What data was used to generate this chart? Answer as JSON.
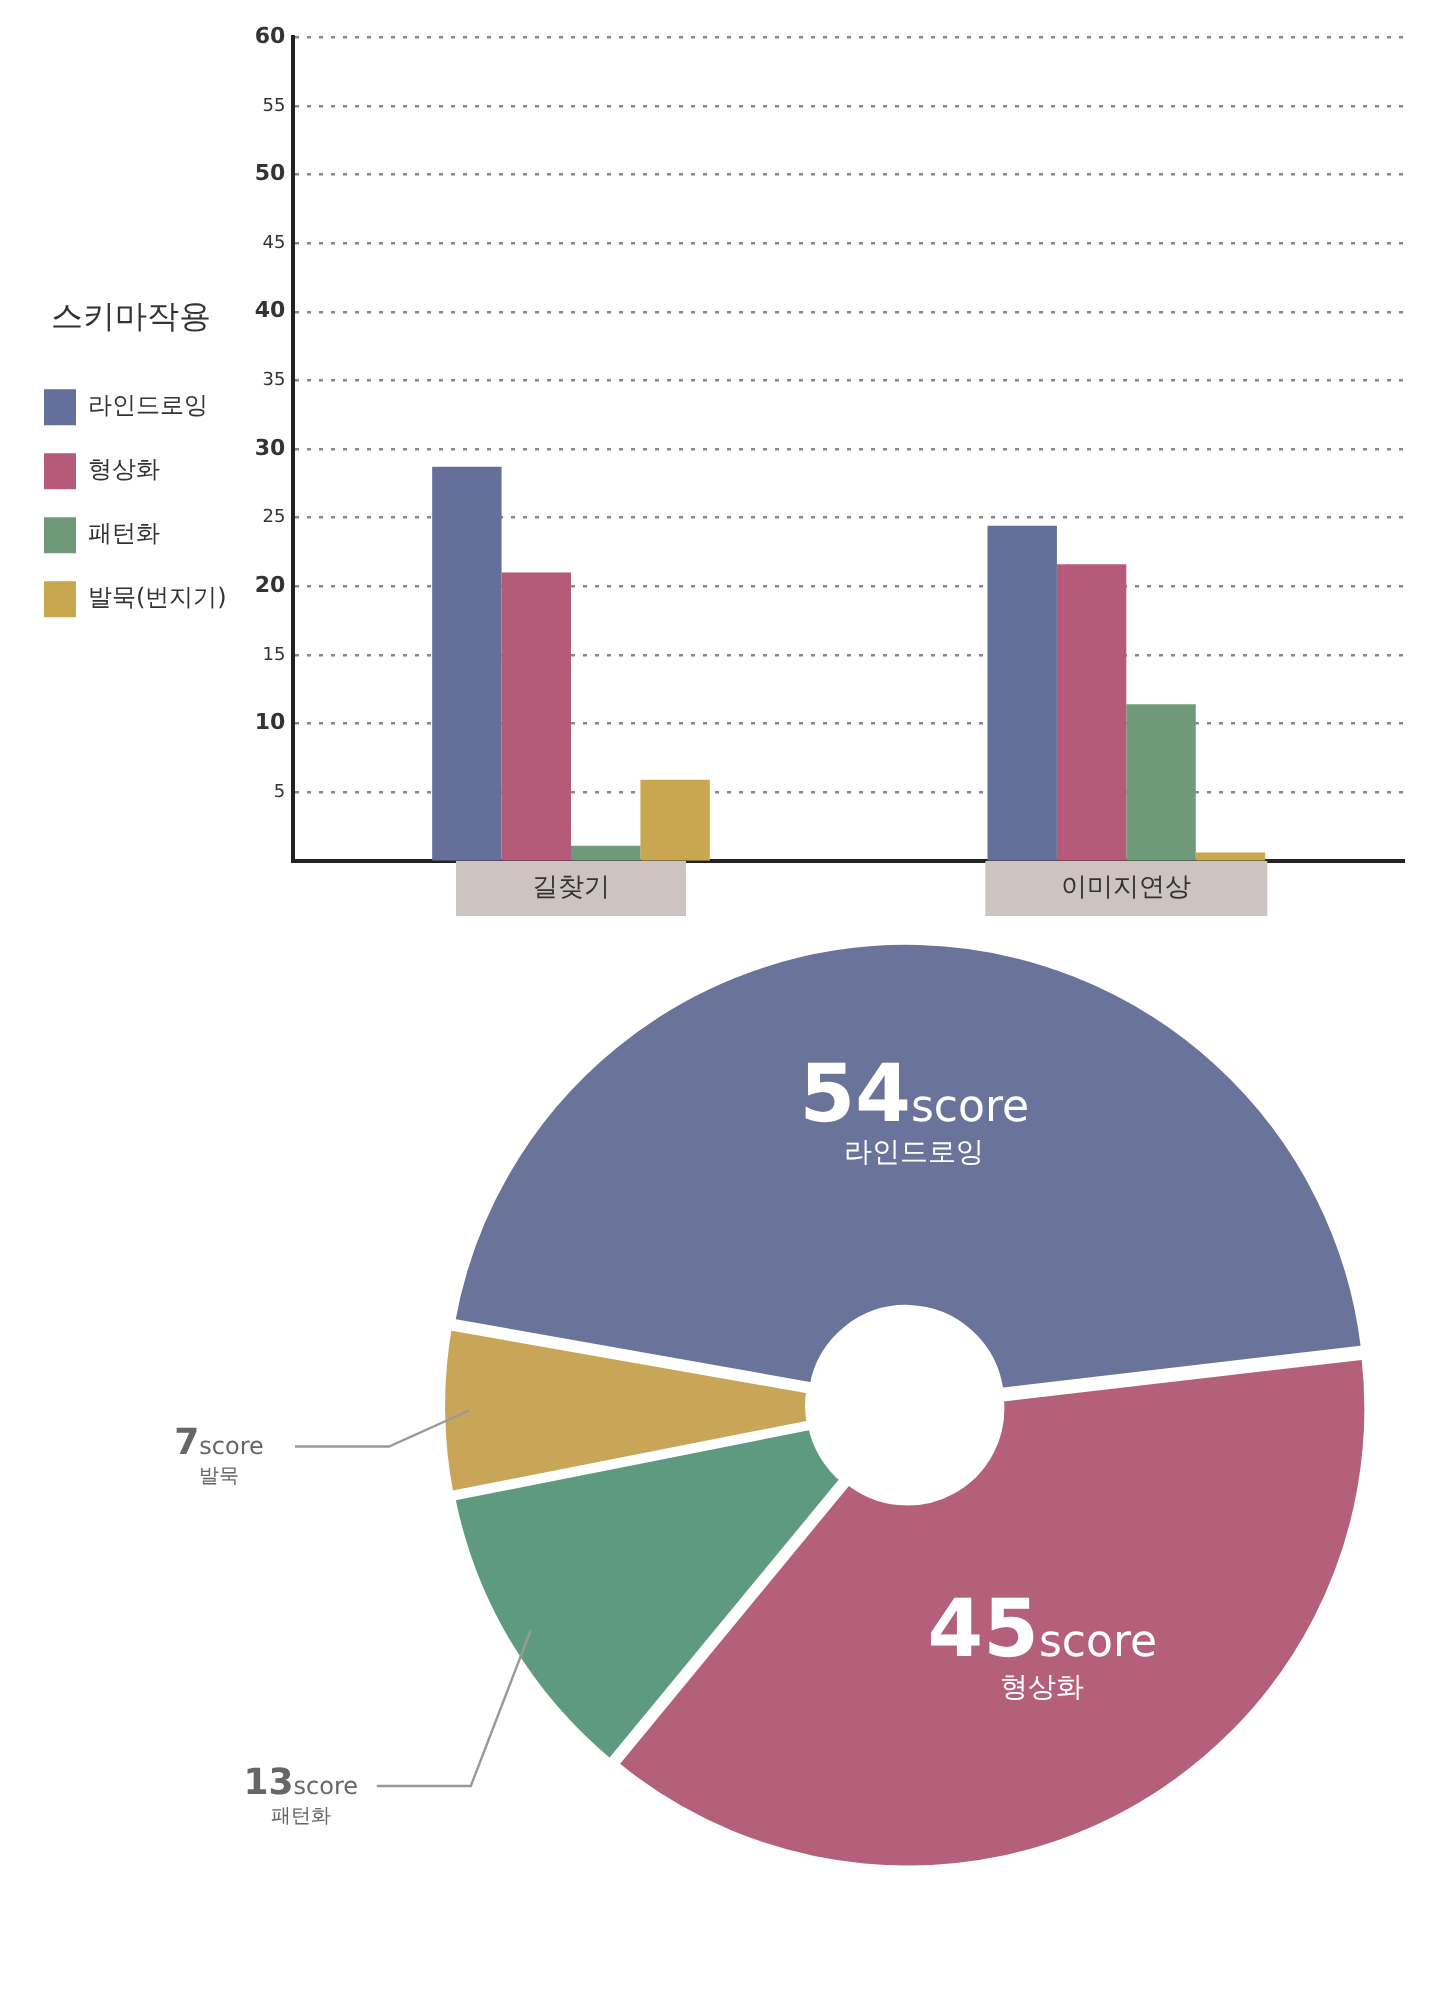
{
  "chart_data": [
    {
      "type": "bar",
      "categories": [
        "길찾기",
        "이미지연상"
      ],
      "legend_title": "스키마작용",
      "legend": "left",
      "grid": "y",
      "ylim": [
        0,
        60
      ],
      "yticks": [
        5,
        10,
        15,
        20,
        25,
        30,
        35,
        40,
        45,
        50,
        55,
        60
      ],
      "series": [
        {
          "name": "라인드로잉",
          "color": "#65709a",
          "values": [
            28.7,
            24.4
          ]
        },
        {
          "name": "형상화",
          "color": "#b55a78",
          "values": [
            21.0,
            21.6
          ]
        },
        {
          "name": "패턴화",
          "color": "#6f9a7a",
          "values": [
            1.1,
            11.4
          ]
        },
        {
          "name": "발묵(번지기)",
          "color": "#c9a650",
          "values": [
            5.9,
            0.6
          ]
        }
      ]
    },
    {
      "type": "donut",
      "categories": [
        "라인드로잉",
        "형상화",
        "패턴화",
        "발묵"
      ],
      "values": [
        54,
        45,
        13,
        7
      ],
      "colors": [
        "#6a7399",
        "#b4607a",
        "#5e9a80",
        "#c9a657"
      ],
      "value_labels": [
        "54score",
        "45score",
        "13score",
        "7score"
      ]
    }
  ]
}
